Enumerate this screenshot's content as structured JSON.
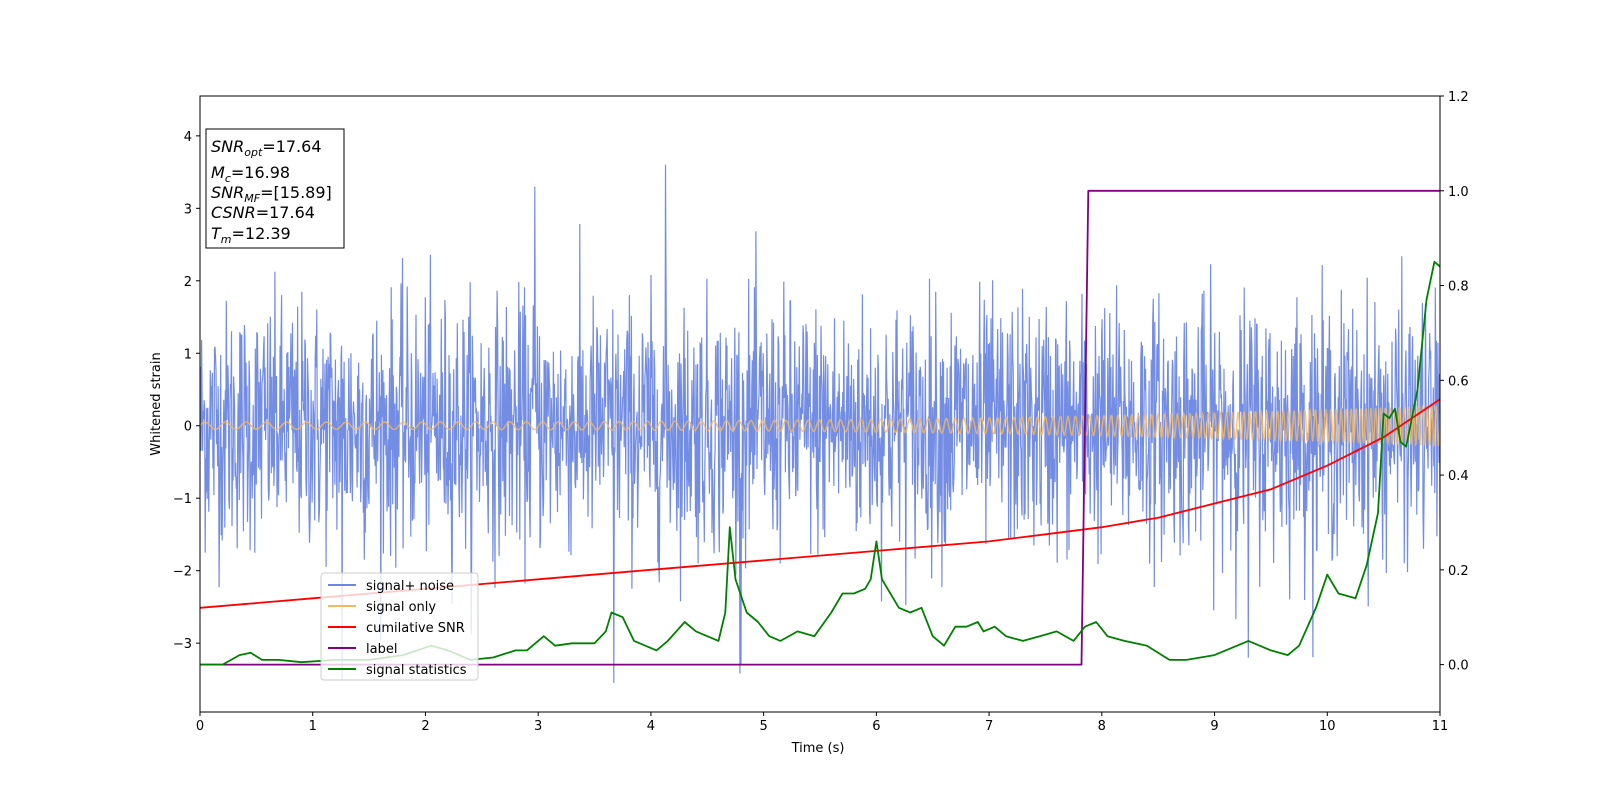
{
  "chart_data": {
    "type": "line",
    "xlabel": "Time (s)",
    "ylabel": "Whitened strain",
    "xlim": [
      0,
      11
    ],
    "ylim_left": [
      -3.95,
      4.55
    ],
    "ylim_right": [
      -0.1,
      1.2
    ],
    "x_ticks": [
      0,
      1,
      2,
      3,
      4,
      5,
      6,
      7,
      8,
      9,
      10,
      11
    ],
    "x_tick_labels": [
      "0",
      "1",
      "2",
      "3",
      "4",
      "5",
      "6",
      "7",
      "8",
      "9",
      "10",
      "11"
    ],
    "y_left_ticks": [
      -3,
      -2,
      -1,
      0,
      1,
      2,
      3,
      4
    ],
    "y_left_tick_labels": [
      "−3",
      "−2",
      "−1",
      "0",
      "1",
      "2",
      "3",
      "4"
    ],
    "y_right_ticks": [
      0.0,
      0.2,
      0.4,
      0.6,
      0.8,
      1.0,
      1.2
    ],
    "y_right_tick_labels": [
      "0.0",
      "0.2",
      "0.4",
      "0.6",
      "0.8",
      "1.0",
      "1.2"
    ],
    "legend_position": "lower-left",
    "grid": false,
    "series": [
      {
        "name": "signal+ noise",
        "axis": "left",
        "color": "#6b87e3",
        "kind": "noise",
        "sigma": 0.85,
        "peak_examples": [
          [
            4.13,
            3.6
          ],
          [
            2.97,
            3.3
          ],
          [
            3.67,
            -3.55
          ],
          [
            1.26,
            -3.5
          ],
          [
            4.8,
            -3.3
          ],
          [
            9.3,
            -3.2
          ]
        ]
      },
      {
        "name": "signal only",
        "axis": "left",
        "color": "#f5b862",
        "kind": "chirp",
        "amplitude_start": 0.05,
        "amplitude_end": 0.28
      },
      {
        "name": "cumilative SNR",
        "axis": "right",
        "color": "#ff0000",
        "x": [
          0,
          1,
          2,
          3,
          4,
          5,
          6,
          7,
          7.5,
          8,
          8.5,
          9,
          9.5,
          10,
          10.5,
          11
        ],
        "y": [
          0.12,
          0.14,
          0.16,
          0.18,
          0.2,
          0.22,
          0.24,
          0.26,
          0.275,
          0.29,
          0.31,
          0.34,
          0.37,
          0.42,
          0.48,
          0.56
        ]
      },
      {
        "name": "label",
        "axis": "right",
        "color": "#800080",
        "x": [
          0,
          7.82,
          7.88,
          11
        ],
        "y": [
          0,
          0,
          1,
          1
        ]
      },
      {
        "name": "signal statistics",
        "axis": "right",
        "color": "#008000",
        "x": [
          0,
          0.2,
          0.35,
          0.45,
          0.55,
          0.7,
          0.9,
          1.2,
          1.5,
          1.8,
          2.05,
          2.2,
          2.4,
          2.6,
          2.8,
          2.9,
          3.05,
          3.15,
          3.3,
          3.5,
          3.6,
          3.65,
          3.75,
          3.85,
          3.95,
          4.05,
          4.15,
          4.3,
          4.4,
          4.5,
          4.6,
          4.66,
          4.7,
          4.75,
          4.85,
          4.95,
          5.05,
          5.15,
          5.3,
          5.45,
          5.6,
          5.7,
          5.8,
          5.9,
          5.95,
          6.0,
          6.05,
          6.1,
          6.2,
          6.3,
          6.4,
          6.5,
          6.6,
          6.7,
          6.8,
          6.9,
          6.95,
          7.05,
          7.15,
          7.3,
          7.45,
          7.6,
          7.75,
          7.85,
          7.95,
          8.05,
          8.2,
          8.4,
          8.6,
          8.75,
          9.0,
          9.3,
          9.5,
          9.65,
          9.75,
          9.9,
          10.0,
          10.1,
          10.25,
          10.35,
          10.45,
          10.5,
          10.55,
          10.6,
          10.65,
          10.7,
          10.8,
          10.88,
          10.95,
          11.0
        ],
        "y": [
          0,
          0.0,
          0.02,
          0.025,
          0.01,
          0.01,
          0.005,
          0.01,
          0.01,
          0.02,
          0.04,
          0.03,
          0.01,
          0.015,
          0.03,
          0.03,
          0.06,
          0.04,
          0.045,
          0.045,
          0.07,
          0.11,
          0.1,
          0.05,
          0.04,
          0.03,
          0.05,
          0.09,
          0.07,
          0.06,
          0.05,
          0.11,
          0.29,
          0.18,
          0.11,
          0.09,
          0.06,
          0.05,
          0.07,
          0.06,
          0.11,
          0.15,
          0.15,
          0.16,
          0.18,
          0.26,
          0.18,
          0.16,
          0.12,
          0.11,
          0.12,
          0.06,
          0.04,
          0.08,
          0.08,
          0.09,
          0.07,
          0.08,
          0.06,
          0.05,
          0.06,
          0.07,
          0.05,
          0.08,
          0.09,
          0.06,
          0.05,
          0.04,
          0.01,
          0.01,
          0.02,
          0.05,
          0.03,
          0.02,
          0.04,
          0.12,
          0.19,
          0.15,
          0.14,
          0.21,
          0.32,
          0.53,
          0.52,
          0.54,
          0.47,
          0.46,
          0.58,
          0.77,
          0.85,
          0.84
        ]
      }
    ]
  },
  "info_box": {
    "lines": [
      {
        "sym": "SNR",
        "sub": "opt",
        "value": "=17.64"
      },
      {
        "sym": "M",
        "sub": "c",
        "value": "=16.98"
      },
      {
        "sym": "SNR",
        "sub": "MF",
        "value": "=[15.89]"
      },
      {
        "sym": "CSNR",
        "sub": "",
        "value": "=17.64"
      },
      {
        "sym": "T",
        "sub": "m",
        "value": "=12.39"
      }
    ]
  }
}
